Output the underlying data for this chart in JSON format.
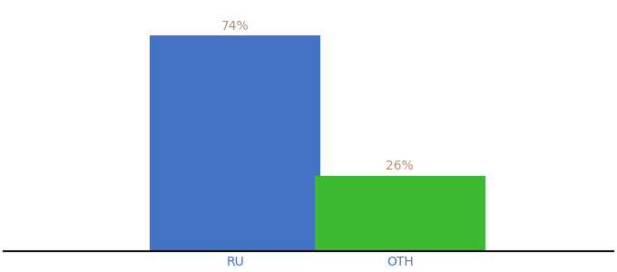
{
  "categories": [
    "RU",
    "OTH"
  ],
  "values": [
    74,
    26
  ],
  "bar_colors": [
    "#4472c4",
    "#3cb832"
  ],
  "label_texts": [
    "74%",
    "26%"
  ],
  "label_color": "#b09070",
  "tick_color": "#4472c4",
  "background_color": "#ffffff",
  "ylim": [
    0,
    85
  ],
  "bar_width": 0.28,
  "label_fontsize": 10,
  "tick_fontsize": 10,
  "spine_color": "#111111",
  "x_positions": [
    0.38,
    0.65
  ],
  "xlim": [
    0.0,
    1.0
  ]
}
